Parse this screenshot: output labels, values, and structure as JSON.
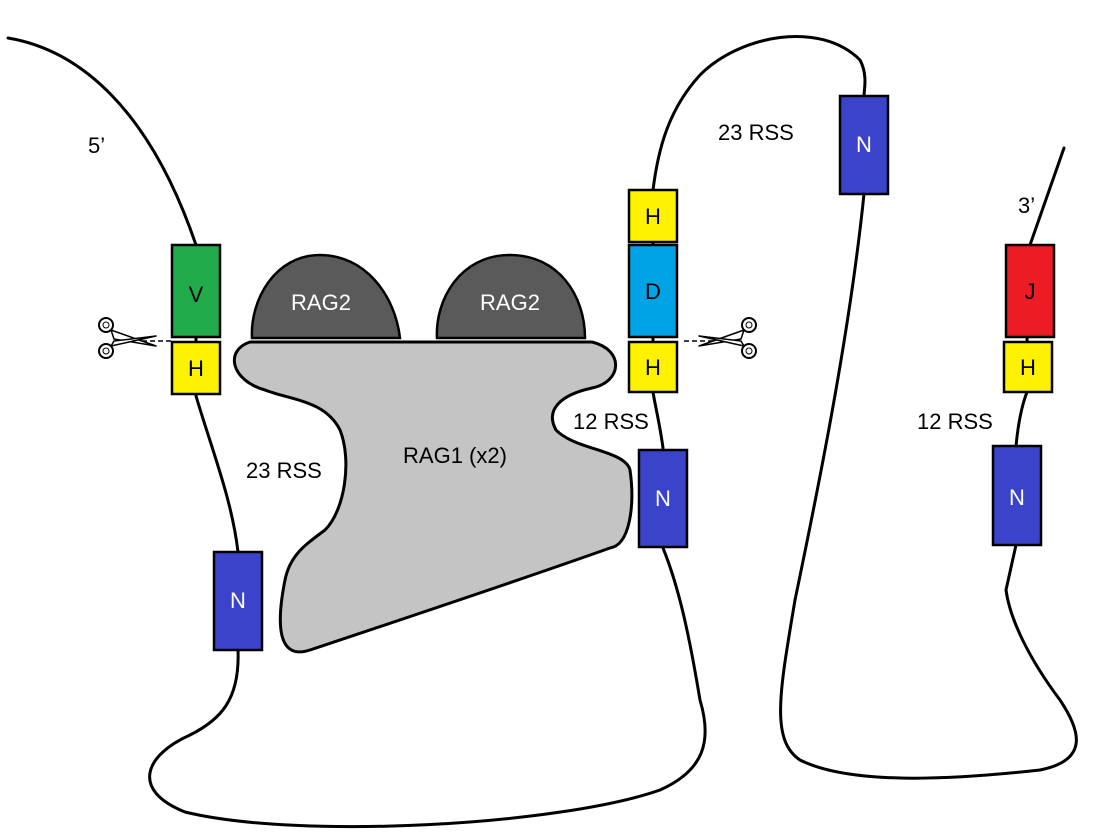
{
  "labels": {
    "five_prime": "5’",
    "three_prime": "3’",
    "rss_23_left": "23 RSS",
    "rss_23_right": "23 RSS",
    "rss_12_middle": "12 RSS",
    "rss_12_right": "12 RSS"
  },
  "segments": {
    "v": "V",
    "d": "D",
    "j": "J",
    "heptamer": "H",
    "nonamer": "N"
  },
  "proteins": {
    "rag2_left": "RAG2",
    "rag2_right": "RAG2",
    "rag1": "RAG1 (x2)"
  },
  "colors": {
    "v": "#22ab4b",
    "d": "#00a3e6",
    "j": "#ec1c24",
    "heptamer": "#fff200",
    "nonamer": "#3a43c9",
    "rag1": "#c4c4c4",
    "rag2": "#5a5a5a"
  },
  "icons": [
    "scissors-icon"
  ]
}
